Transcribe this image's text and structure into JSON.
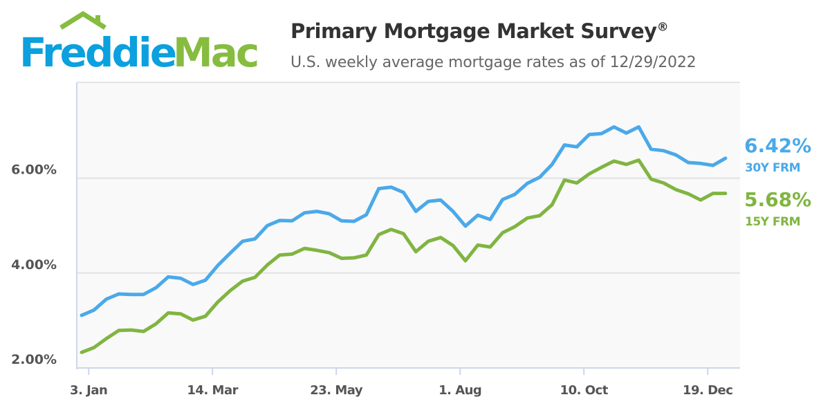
{
  "logo": {
    "brand_left": "Freddie",
    "brand_right": "Mac",
    "colors": {
      "freddie": "#0BA0DE",
      "mac": "#86BC3F"
    }
  },
  "header": {
    "title": "Primary Mortgage Market Survey",
    "title_mark": "®",
    "subtitle": "U.S. weekly average mortgage rates as of 12/29/2022"
  },
  "chart_data": {
    "type": "line",
    "title": "Primary Mortgage Market Survey®",
    "subtitle": "U.S. weekly average mortgage rates as of 12/29/2022",
    "xlabel": "",
    "ylabel": "",
    "ylim": [
      2,
      8
    ],
    "grid": true,
    "y_ticks": [
      {
        "value": 2,
        "label": "2.00%"
      },
      {
        "value": 4,
        "label": "4.00%"
      },
      {
        "value": 6,
        "label": "6.00%"
      }
    ],
    "x_ticks": [
      {
        "week": 0.57,
        "label": "3. Jan"
      },
      {
        "week": 10.57,
        "label": "14. Mar"
      },
      {
        "week": 20.57,
        "label": "23. May"
      },
      {
        "week": 30.57,
        "label": "1. Aug"
      },
      {
        "week": 40.57,
        "label": "10. Oct"
      },
      {
        "week": 50.57,
        "label": "19. Dec"
      }
    ],
    "legend_placement": "right, end of lines",
    "series": [
      {
        "name": "30Y FRM",
        "last_label": "6.42%",
        "color": "#4AA9E9",
        "values": [
          3.11,
          3.22,
          3.45,
          3.56,
          3.55,
          3.55,
          3.69,
          3.92,
          3.89,
          3.76,
          3.85,
          4.16,
          4.42,
          4.67,
          4.72,
          5.0,
          5.11,
          5.1,
          5.27,
          5.3,
          5.25,
          5.1,
          5.09,
          5.23,
          5.78,
          5.81,
          5.7,
          5.3,
          5.51,
          5.54,
          5.3,
          4.99,
          5.22,
          5.13,
          5.55,
          5.66,
          5.89,
          6.02,
          6.29,
          6.7,
          6.66,
          6.92,
          6.94,
          7.08,
          6.95,
          7.08,
          6.61,
          6.58,
          6.49,
          6.33,
          6.31,
          6.27,
          6.42
        ]
      },
      {
        "name": "15Y FRM",
        "last_label": "5.68%",
        "color": "#80B541",
        "values": [
          2.33,
          2.43,
          2.62,
          2.79,
          2.8,
          2.77,
          2.93,
          3.16,
          3.14,
          3.01,
          3.09,
          3.39,
          3.63,
          3.83,
          3.91,
          4.17,
          4.38,
          4.4,
          4.52,
          4.48,
          4.43,
          4.31,
          4.32,
          4.38,
          4.81,
          4.92,
          4.83,
          4.45,
          4.67,
          4.75,
          4.58,
          4.26,
          4.59,
          4.55,
          4.85,
          4.98,
          5.16,
          5.21,
          5.44,
          5.96,
          5.9,
          6.09,
          6.23,
          6.36,
          6.29,
          6.38,
          5.98,
          5.9,
          5.76,
          5.67,
          5.54,
          5.68,
          5.68
        ]
      }
    ]
  }
}
